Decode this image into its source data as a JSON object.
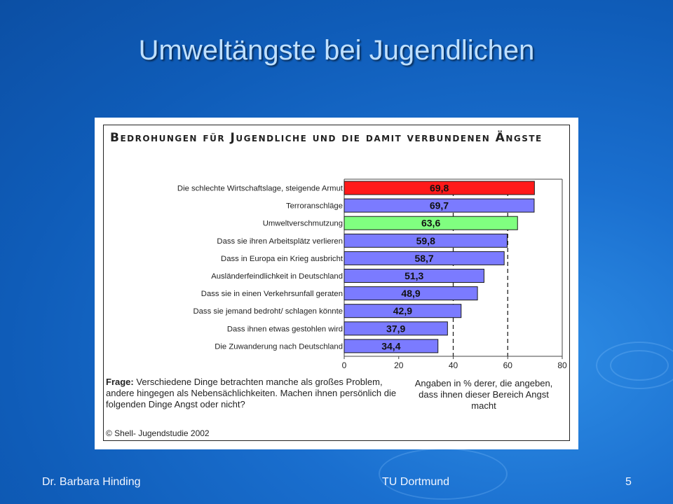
{
  "slide": {
    "title": "Umweltängste bei Jugendlichen",
    "footer_left": "Dr. Barbara Hinding",
    "footer_center": "TU Dortmund",
    "page_number": "5"
  },
  "chart_data": {
    "type": "bar",
    "orientation": "horizontal",
    "title": "Bedrohungen für Jugendliche und die damit verbundenen Ängste",
    "categories": [
      "Die schlechte Wirtschaftslage, steigende Armut",
      "Terroranschläge",
      "Umweltverschmutzung",
      "Dass sie ihren Arbeitsplätz verlieren",
      "Dass in Europa ein Krieg ausbricht",
      "Ausländerfeindlichkeit in Deutschland",
      "Dass sie in einen Verkehrsunfall geraten",
      "Dass sie jemand bedroht/ schlagen könnte",
      "Dass ihnen etwas gestohlen wird",
      "Die Zuwanderung nach Deutschland"
    ],
    "values": [
      69.8,
      69.7,
      63.6,
      59.8,
      58.7,
      51.3,
      48.9,
      42.9,
      37.9,
      34.4
    ],
    "value_labels": [
      "69,8",
      "69,7",
      "63,6",
      "59,8",
      "58,7",
      "51,3",
      "48,9",
      "42,9",
      "37,9",
      "34,4"
    ],
    "bar_colors": [
      "#ff1a1a",
      "#7b7bff",
      "#80ff80",
      "#7b7bff",
      "#7b7bff",
      "#7b7bff",
      "#7b7bff",
      "#7b7bff",
      "#7b7bff",
      "#7b7bff"
    ],
    "xlim": [
      0,
      80
    ],
    "xticks": [
      0,
      20,
      40,
      60,
      80
    ],
    "dashed_reference_lines": [
      40,
      60
    ],
    "grid": false,
    "question_label": "Frage:",
    "question_text": "Verschiedene Dinge betrachten manche als großes Problem, andere hingegen als Nebensächlichkeiten. Machen ihnen persönlich die folgenden Dinge Angst oder nicht?",
    "unit_note": "Angaben in % derer, die angeben, dass ihnen dieser Bereich Angst macht",
    "source": "© Shell- Jugendstudie 2002"
  }
}
